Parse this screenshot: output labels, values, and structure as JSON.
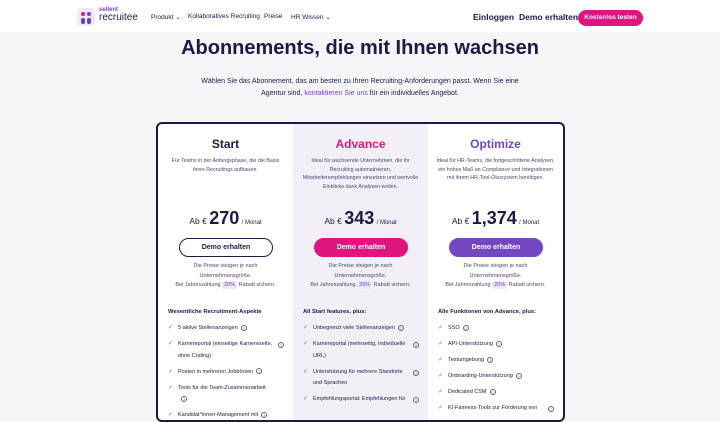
{
  "nav": {
    "logo_top": "sellent",
    "logo_bottom": "recruitee",
    "links": [
      "Produkt",
      "Kollaboratives Recruiting",
      "Preise",
      "HR Wissen"
    ],
    "login": "Einloggen",
    "demo": "Demo erhalten",
    "cta": "Kostenlos testen"
  },
  "hero": {
    "title": "Abonnements, die mit Ihnen wachsen",
    "sub_before": "Wählen Sie das Abonnement, das am besten zu Ihren Recruiting-Anforderungen passt. Wenn Sie eine Agentur sind, ",
    "sub_link": "kontaktieren Sie uns",
    "sub_after": " für ein individuelles Angebot."
  },
  "colors": {
    "navy": "#1b1a4a",
    "pink": "#e0157f",
    "purple": "#7446c4"
  },
  "plans": [
    {
      "name": "Start",
      "desc": "Für Teams in der Anfangsphase, die die Basis ihres Recruitings aufbauen.",
      "prefix": "Ab €",
      "price": "270",
      "per": "/ Monat",
      "button": "Demo erhalten",
      "note1": "Die Preise steigen je nach Unternehmensgröße.",
      "note2a": "Bei Jahreszahlung",
      "pct": "20%",
      "note2b": "Rabatt sichern.",
      "features_title": "Wesentliche Recruitment-Aspekte",
      "features": [
        "5 aktive Stellenanzeigen",
        "Karriereportal (einseitige Karriereseite, ohne Coding)",
        "Posten in mehreren Jobbörsen",
        "Tools für die Team-Zusammenarbeit",
        "Kandidat*innen-Management mit"
      ]
    },
    {
      "name": "Advance",
      "desc": "Ideal für wachsende Unternehmen, die ihr Recruiting automatisieren, Mitarbeiterempfehlungen einsetzen und wertvolle Einblicke dank Analysen wollen.",
      "prefix": "Ab €",
      "price": "343",
      "per": "/ Monat",
      "button": "Demo erhalten",
      "note1": "Die Preise steigen je nach Unternehmensgröße.",
      "note2a": "Bei Jahreszahlung",
      "pct": "20%",
      "note2b": "Rabatt sichern.",
      "features_title": "All Start features, plus:",
      "features": [
        "Unbegrenzt viele Stellenanzeigen",
        "Karriereportal (mehrseitig, individuelle URL)",
        "Unterstützung für mehrere Standorte und Sprachen",
        "Empfehlungsportal: Empfehlungen für"
      ]
    },
    {
      "name": "Optimize",
      "desc": "Ideal für HR-Teams, die fortgeschrittene Analysen, ein hohes Maß an Compliance und Integrationen mit ihrem HR-Tool-Ökosystem benötigen.",
      "prefix": "Ab €",
      "price": "1,374",
      "per": "/ Monat",
      "button": "Demo erhalten",
      "note1": "Die Preise steigen je nach Unternehmensgröße.",
      "note2a": "Bei Jahreszahlung",
      "pct": "20%",
      "note2b": "Rabatt sichern.",
      "features_title": "Alle Funktionen von Advance, plus:",
      "features": [
        "SSO",
        "API-Unterstützung",
        "Testumgebung",
        "Onboarding-Unterstützung",
        "Dedicated CSM",
        "KI-Fairness-Tools zur Förderung von"
      ]
    }
  ]
}
